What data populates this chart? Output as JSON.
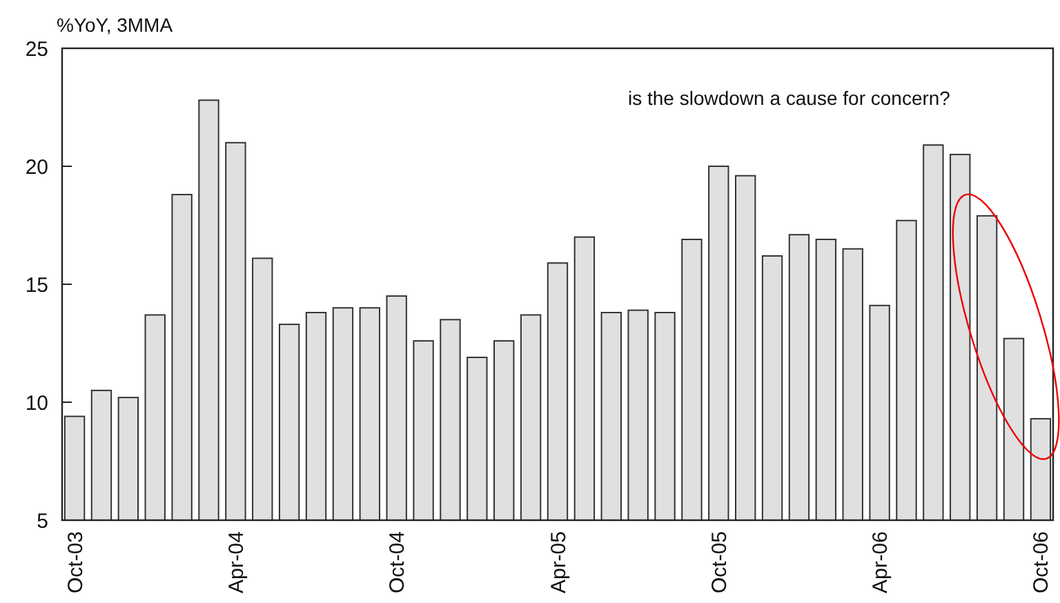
{
  "chart_data": {
    "type": "bar",
    "ylabel": "%YoY, 3MMA",
    "categories": [
      "Oct-03",
      null,
      null,
      null,
      null,
      null,
      "Apr-04",
      null,
      null,
      null,
      null,
      null,
      "Oct-04",
      null,
      null,
      null,
      null,
      null,
      "Apr-05",
      null,
      null,
      null,
      null,
      null,
      "Oct-05",
      null,
      null,
      null,
      null,
      null,
      "Apr-06",
      null,
      null,
      null,
      null,
      null,
      "Oct-06"
    ],
    "values": [
      9.4,
      10.5,
      10.2,
      13.7,
      18.8,
      22.8,
      21.0,
      16.1,
      13.3,
      13.8,
      14.0,
      14.0,
      14.5,
      12.6,
      13.5,
      11.9,
      12.6,
      13.7,
      15.9,
      17.0,
      13.8,
      13.9,
      13.8,
      16.9,
      20.0,
      19.6,
      16.2,
      17.1,
      16.9,
      16.5,
      14.1,
      17.7,
      20.9,
      20.5,
      17.9,
      12.7,
      9.3
    ],
    "color": "#e0e0e0",
    "ylim": [
      5,
      25
    ],
    "yticks": [
      5,
      10,
      15,
      20,
      25
    ],
    "annotations": [
      "is the slowdown a cause for concern?"
    ]
  }
}
